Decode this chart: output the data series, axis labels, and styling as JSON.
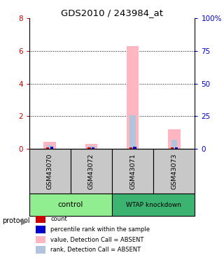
{
  "title": "GDS2010 / 243984_at",
  "samples": [
    "GSM43070",
    "GSM43072",
    "GSM43071",
    "GSM43073"
  ],
  "ylim_left": [
    0,
    8
  ],
  "ylim_right": [
    0,
    100
  ],
  "yticks_left": [
    0,
    2,
    4,
    6,
    8
  ],
  "yticks_right": [
    0,
    25,
    50,
    75,
    100
  ],
  "ytick_labels_right": [
    "0",
    "25",
    "50",
    "75",
    "100%"
  ],
  "value_bars": [
    0.42,
    0.28,
    6.3,
    1.2
  ],
  "rank_bars": [
    0.2,
    0.15,
    2.05,
    0.55
  ],
  "count_bars": [
    0.07,
    0.07,
    0.07,
    0.07
  ],
  "percentile_bars": [
    0.12,
    0.1,
    0.12,
    0.1
  ],
  "value_color": "#FFB6C1",
  "rank_color": "#B0C4DE",
  "count_color": "#CC0000",
  "percentile_color": "#0000CC",
  "sample_bg_color": "#C8C8C8",
  "group1_color": "#90EE90",
  "group2_color": "#3CB371",
  "left_tick_color": "#CC0000",
  "right_tick_color": "#0000CC",
  "dotted_grid_values": [
    2,
    4,
    6
  ],
  "legend_items": [
    {
      "label": "count",
      "color": "#CC0000"
    },
    {
      "label": "percentile rank within the sample",
      "color": "#0000CC"
    },
    {
      "label": "value, Detection Call = ABSENT",
      "color": "#FFB6C1"
    },
    {
      "label": "rank, Detection Call = ABSENT",
      "color": "#B0C4DE"
    }
  ]
}
